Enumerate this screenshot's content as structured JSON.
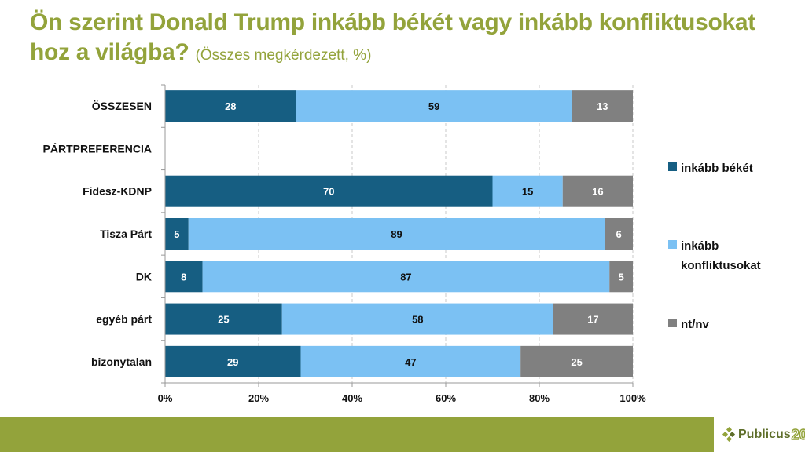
{
  "title": {
    "main": "Ön szerint Donald Trump inkább békét vagy inkább konfliktusokat hoz a világba?",
    "subtitle": "(Összes megkérdezett, %)"
  },
  "brand": {
    "logo_text": "Publicus",
    "logo_number": "20",
    "accent_color": "#93a33b"
  },
  "chart_data": {
    "type": "bar",
    "orientation": "horizontal",
    "stacked": true,
    "title": "Ön szerint Donald Trump inkább békét vagy inkább konfliktusokat hoz a világba? (Összes megkérdezett, %)",
    "xlabel": "",
    "ylabel": "",
    "xlim": [
      0,
      100
    ],
    "x_ticks": [
      "0%",
      "20%",
      "40%",
      "60%",
      "80%",
      "100%"
    ],
    "grid": "vertical dashed",
    "legend_position": "right",
    "categories": [
      "ÖSSZESEN",
      "PÁRTPREFERENCIA",
      "Fidesz-KDNP",
      "Tisza Párt",
      "DK",
      "egyéb párt",
      "bizonytalan"
    ],
    "series": [
      {
        "name": "inkább békét",
        "color": "#165e82",
        "label_color": "#ffffff",
        "values": [
          28,
          null,
          70,
          5,
          8,
          25,
          29
        ]
      },
      {
        "name": "inkább konfliktusokat",
        "color": "#7bc1f3",
        "label_color": "#111111",
        "values": [
          59,
          null,
          15,
          89,
          87,
          58,
          47
        ]
      },
      {
        "name": "nt/nv",
        "color": "#808080",
        "label_color": "#ffffff",
        "values": [
          13,
          null,
          16,
          6,
          5,
          17,
          25
        ]
      }
    ],
    "legend": [
      {
        "label_lines": [
          "inkább békét"
        ]
      },
      {
        "label_lines": [
          "inkább",
          "konfliktusokat"
        ]
      },
      {
        "label_lines": [
          "nt/nv"
        ]
      }
    ]
  }
}
